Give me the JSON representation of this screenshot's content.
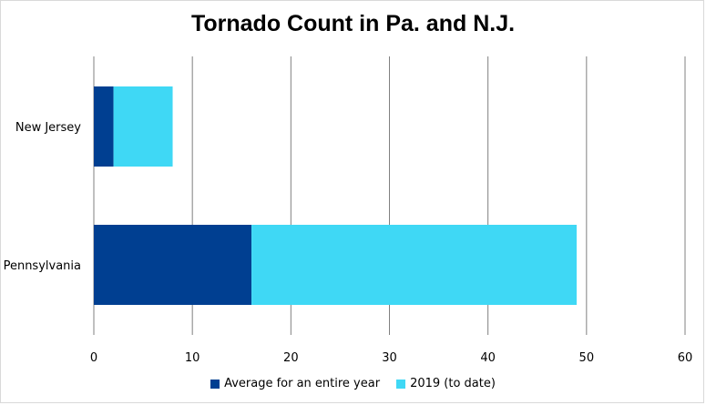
{
  "chart_data": {
    "type": "bar",
    "orientation": "horizontal",
    "stacked": true,
    "title": "Tornado Count in Pa. and N.J.",
    "categories": [
      "New Jersey",
      "Pennsylvania"
    ],
    "series": [
      {
        "name": "Average for an entire year",
        "values": [
          2,
          16
        ],
        "color": "#003f91"
      },
      {
        "name": "2019 (to date)",
        "values": [
          6,
          33
        ],
        "color": "#3fd8f5"
      }
    ],
    "xlim": [
      0,
      60
    ],
    "xticks": [
      "0",
      "10",
      "20",
      "30",
      "40",
      "50",
      "60"
    ],
    "xlabel": "",
    "ylabel": "",
    "grid": true,
    "legend_position": "bottom"
  }
}
